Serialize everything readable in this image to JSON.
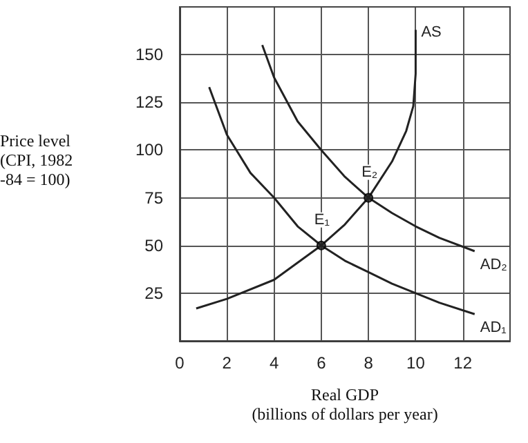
{
  "chart_data": {
    "type": "line",
    "xlabel": "Real GDP\n(billions of dollars per year)",
    "ylabel": "Price level\n(CPI, 1982\n-84 = 100)",
    "xlim": [
      0,
      14
    ],
    "ylim": [
      0,
      175
    ],
    "xticks": [
      0,
      2,
      4,
      6,
      8,
      10,
      12
    ],
    "yticks": [
      25,
      50,
      75,
      100,
      125,
      150
    ],
    "grid": true,
    "marker": "none",
    "line_style": "solid",
    "series": [
      {
        "name": "AS",
        "color": "#222222",
        "x": [
          0.7,
          2,
          4,
          6,
          7,
          8,
          9,
          9.6,
          9.9,
          10,
          10
        ],
        "values": [
          17,
          22,
          32,
          50,
          61,
          75,
          94,
          110,
          123,
          140,
          163
        ]
      },
      {
        "name": "AD₁",
        "color": "#222222",
        "x": [
          1.25,
          2,
          3,
          4,
          5,
          6,
          7,
          8,
          9,
          10,
          11,
          12.5
        ],
        "values": [
          133,
          108,
          88,
          75,
          60,
          50,
          42,
          36,
          30,
          25,
          20,
          14
        ]
      },
      {
        "name": "AD₂",
        "color": "#222222",
        "x": [
          3.5,
          4,
          5,
          6,
          7,
          8,
          9,
          10,
          11,
          12.5
        ],
        "values": [
          155,
          138,
          115,
          100,
          86,
          75,
          67,
          60,
          54,
          47
        ]
      },
      {
        "type": "scatter",
        "marker": "circle",
        "color": "#222222",
        "x": [
          6,
          8
        ],
        "values": [
          50,
          75
        ]
      }
    ],
    "annotations": [
      {
        "text": "E₁",
        "x": 6,
        "y": 50
      },
      {
        "text": "E₂",
        "x": 8,
        "y": 75
      }
    ]
  }
}
